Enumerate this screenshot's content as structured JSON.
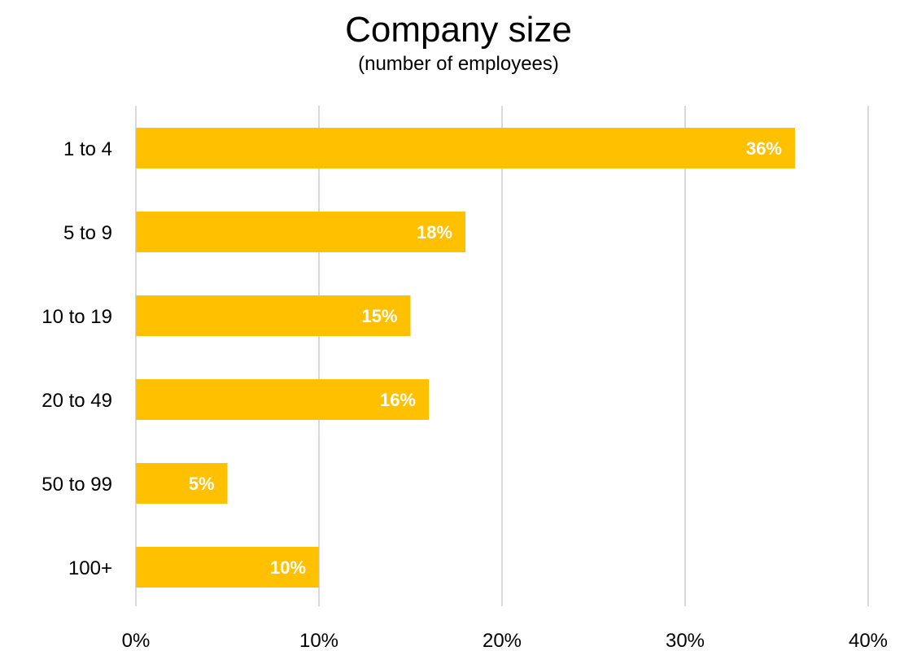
{
  "chart_data": {
    "type": "bar",
    "orientation": "horizontal",
    "title": "Company size",
    "subtitle": "(number of employees)",
    "categories": [
      "1 to 4",
      "5 to 9",
      "10 to 19",
      "20 to 49",
      "50 to 99",
      "100+"
    ],
    "values": [
      36,
      18,
      15,
      16,
      5,
      10
    ],
    "value_labels": [
      "36%",
      "18%",
      "15%",
      "16%",
      "5%",
      "10%"
    ],
    "x_ticks": [
      0,
      10,
      20,
      30,
      40
    ],
    "x_tick_labels": [
      "0%",
      "10%",
      "20%",
      "30%",
      "40%"
    ],
    "xlim": [
      0,
      40
    ],
    "grid": "vertical",
    "legend": "none",
    "bar_color": "#FFC000",
    "grid_color": "#D9D9D9",
    "label_color": "#FFFFFF"
  }
}
